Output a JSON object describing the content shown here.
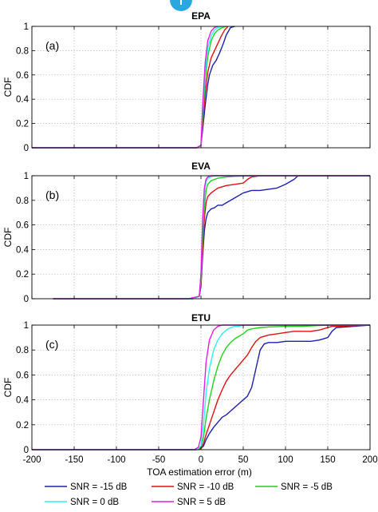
{
  "figure": {
    "xlabel": "TOA estimation error (m)",
    "ylabel": "CDF",
    "xlim": [
      -200,
      200
    ],
    "ylim": [
      0,
      1
    ],
    "xticks": [
      -200,
      -150,
      -100,
      -50,
      0,
      50,
      100,
      150,
      200
    ],
    "yticks": [
      0,
      0.2,
      0.4,
      0.6,
      0.8,
      1
    ],
    "grid": true
  },
  "legend": {
    "placement": "bottom",
    "items": [
      {
        "name": "SNR = -15 dB",
        "color": "#1f1fb0"
      },
      {
        "name": "SNR = -10 dB",
        "color": "#e01010"
      },
      {
        "name": "SNR = -5 dB",
        "color": "#20d020"
      },
      {
        "name": "SNR = 0 dB",
        "color": "#30f0f0"
      },
      {
        "name": "SNR = 5 dB",
        "color": "#e020e0"
      }
    ]
  },
  "chart_data": [
    {
      "type": "line",
      "title": "EPA",
      "panel_label": "(a)",
      "xlabel": "",
      "ylabel": "CDF",
      "xlim": [
        -200,
        200
      ],
      "ylim": [
        0,
        1
      ],
      "series": [
        {
          "name": "SNR = -15 dB",
          "color": "#1f1fb0",
          "x": [
            -200,
            -5,
            0,
            2,
            5,
            8,
            10,
            14,
            18,
            22,
            26,
            30,
            35,
            40
          ],
          "y": [
            0,
            0,
            0.02,
            0.15,
            0.35,
            0.52,
            0.6,
            0.68,
            0.72,
            0.78,
            0.85,
            0.93,
            0.99,
            1
          ]
        },
        {
          "name": "SNR = -10 dB",
          "color": "#e01010",
          "x": [
            -200,
            -5,
            0,
            2,
            5,
            8,
            12,
            16,
            20,
            24,
            28,
            32
          ],
          "y": [
            0,
            0,
            0.02,
            0.2,
            0.45,
            0.62,
            0.74,
            0.8,
            0.86,
            0.92,
            0.97,
            1
          ]
        },
        {
          "name": "SNR = -5 dB",
          "color": "#20d020",
          "x": [
            -200,
            -5,
            0,
            2,
            5,
            8,
            12,
            16,
            20,
            25,
            30
          ],
          "y": [
            0,
            0,
            0.02,
            0.25,
            0.55,
            0.75,
            0.88,
            0.94,
            0.97,
            0.99,
            1
          ]
        },
        {
          "name": "SNR = 0 dB",
          "color": "#30f0f0",
          "x": [
            -200,
            -5,
            0,
            2,
            5,
            8,
            12,
            16,
            20,
            25
          ],
          "y": [
            0,
            0,
            0.02,
            0.3,
            0.62,
            0.82,
            0.92,
            0.97,
            0.99,
            1
          ]
        },
        {
          "name": "SNR = 5 dB",
          "color": "#e020e0",
          "x": [
            -200,
            -5,
            0,
            2,
            5,
            8,
            12,
            16,
            20
          ],
          "y": [
            0,
            0,
            0.02,
            0.35,
            0.7,
            0.88,
            0.96,
            0.99,
            1
          ]
        }
      ]
    },
    {
      "type": "line",
      "title": "EVA",
      "panel_label": "(b)",
      "xlabel": "",
      "ylabel": "CDF",
      "xlim": [
        -200,
        200
      ],
      "ylim": [
        0,
        1
      ],
      "series": [
        {
          "name": "SNR = -15 dB",
          "color": "#1f1fb0",
          "x": [
            -175,
            -10,
            -2,
            0,
            2,
            4,
            6,
            8,
            12,
            16,
            20,
            25,
            30,
            40,
            50,
            60,
            70,
            80,
            90,
            100,
            110,
            115,
            120,
            200
          ],
          "y": [
            0,
            0,
            0.02,
            0.1,
            0.35,
            0.55,
            0.65,
            0.7,
            0.73,
            0.74,
            0.76,
            0.76,
            0.78,
            0.82,
            0.86,
            0.88,
            0.88,
            0.89,
            0.9,
            0.93,
            0.97,
            1,
            1,
            1
          ]
        },
        {
          "name": "SNR = -10 dB",
          "color": "#e01010",
          "x": [
            -175,
            -10,
            -2,
            0,
            2,
            4,
            6,
            8,
            12,
            16,
            20,
            30,
            40,
            50,
            55,
            60,
            70,
            120,
            200
          ],
          "y": [
            0,
            0,
            0.02,
            0.12,
            0.4,
            0.65,
            0.78,
            0.83,
            0.86,
            0.88,
            0.9,
            0.92,
            0.93,
            0.94,
            0.97,
            0.99,
            1,
            1,
            1
          ]
        },
        {
          "name": "SNR = -5 dB",
          "color": "#20d020",
          "x": [
            -175,
            -10,
            -2,
            0,
            2,
            4,
            6,
            8,
            12,
            16,
            20,
            30,
            40,
            60,
            80,
            200
          ],
          "y": [
            0,
            0,
            0.02,
            0.15,
            0.5,
            0.75,
            0.88,
            0.93,
            0.96,
            0.97,
            0.98,
            0.99,
            0.995,
            1,
            1,
            1
          ]
        },
        {
          "name": "SNR = 0 dB",
          "color": "#30f0f0",
          "x": [
            -175,
            -10,
            -2,
            0,
            2,
            4,
            6,
            8,
            12,
            16,
            20,
            200
          ],
          "y": [
            0,
            0,
            0.02,
            0.2,
            0.6,
            0.85,
            0.95,
            0.98,
            0.99,
            1,
            1,
            1
          ]
        },
        {
          "name": "SNR = 5 dB",
          "color": "#e020e0",
          "x": [
            -175,
            -15,
            -2,
            0,
            2,
            4,
            6,
            8,
            12,
            200
          ],
          "y": [
            0,
            0,
            0.02,
            0.2,
            0.65,
            0.9,
            0.97,
            0.99,
            1,
            1
          ]
        }
      ]
    },
    {
      "type": "line",
      "title": "ETU",
      "panel_label": "(c)",
      "xlabel": "TOA estimation error (m)",
      "ylabel": "CDF",
      "xlim": [
        -200,
        200
      ],
      "ylim": [
        0,
        1
      ],
      "series": [
        {
          "name": "SNR = -15 dB",
          "color": "#1f1fb0",
          "x": [
            -200,
            -5,
            0,
            3,
            6,
            10,
            15,
            20,
            25,
            30,
            35,
            40,
            45,
            50,
            55,
            60,
            65,
            70,
            75,
            80,
            90,
            100,
            110,
            120,
            130,
            140,
            145,
            150,
            155,
            160,
            200
          ],
          "y": [
            0,
            0,
            0.01,
            0.03,
            0.08,
            0.13,
            0.18,
            0.22,
            0.26,
            0.28,
            0.31,
            0.34,
            0.37,
            0.4,
            0.43,
            0.5,
            0.65,
            0.8,
            0.85,
            0.86,
            0.86,
            0.87,
            0.87,
            0.87,
            0.87,
            0.88,
            0.89,
            0.9,
            0.95,
            0.98,
            1
          ]
        },
        {
          "name": "SNR = -10 dB",
          "color": "#e01010",
          "x": [
            -200,
            -5,
            0,
            3,
            6,
            10,
            15,
            20,
            25,
            30,
            35,
            40,
            45,
            50,
            55,
            60,
            65,
            70,
            80,
            90,
            100,
            110,
            120,
            130,
            140,
            145,
            150,
            155,
            160,
            200
          ],
          "y": [
            0,
            0,
            0.01,
            0.05,
            0.12,
            0.2,
            0.3,
            0.4,
            0.48,
            0.55,
            0.6,
            0.64,
            0.68,
            0.72,
            0.76,
            0.82,
            0.87,
            0.9,
            0.92,
            0.93,
            0.94,
            0.95,
            0.95,
            0.95,
            0.96,
            0.97,
            0.98,
            0.99,
            0.99,
            1
          ]
        },
        {
          "name": "SNR = -5 dB",
          "color": "#20d020",
          "x": [
            -200,
            -5,
            0,
            3,
            6,
            10,
            15,
            20,
            25,
            30,
            35,
            40,
            45,
            50,
            55,
            60,
            70,
            80,
            100,
            120,
            150,
            200
          ],
          "y": [
            0,
            0,
            0.02,
            0.1,
            0.25,
            0.4,
            0.55,
            0.67,
            0.76,
            0.82,
            0.86,
            0.89,
            0.91,
            0.93,
            0.96,
            0.97,
            0.98,
            0.985,
            0.99,
            0.99,
            1,
            1
          ]
        },
        {
          "name": "SNR = 0 dB",
          "color": "#30f0f0",
          "x": [
            -200,
            -5,
            0,
            3,
            6,
            10,
            15,
            20,
            25,
            30,
            35,
            40,
            45,
            50,
            60,
            70,
            200
          ],
          "y": [
            0,
            0,
            0.03,
            0.2,
            0.45,
            0.65,
            0.8,
            0.88,
            0.93,
            0.96,
            0.98,
            0.99,
            0.99,
            1,
            1,
            1,
            1
          ]
        },
        {
          "name": "SNR = 5 dB",
          "color": "#e020e0",
          "x": [
            -200,
            -8,
            -3,
            0,
            3,
            6,
            10,
            15,
            20,
            25,
            30,
            200
          ],
          "y": [
            0,
            0,
            0.02,
            0.1,
            0.4,
            0.7,
            0.88,
            0.96,
            0.99,
            1,
            1,
            1
          ]
        }
      ]
    }
  ]
}
